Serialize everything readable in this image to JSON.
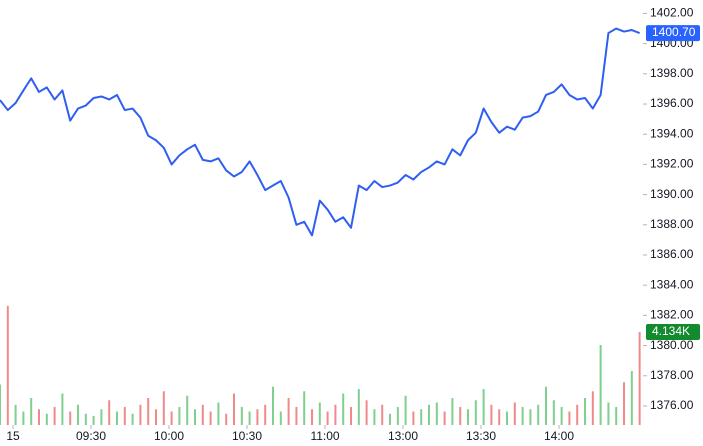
{
  "chart_data": {
    "type": "line",
    "series": [
      {
        "name": "Price",
        "color": "#2f5ff0",
        "values": [
          1396.26,
          1395.6,
          1396.07,
          1396.9,
          1397.7,
          1396.8,
          1397.1,
          1396.3,
          1396.9,
          1394.9,
          1395.7,
          1395.9,
          1396.4,
          1396.5,
          1396.3,
          1396.6,
          1395.6,
          1395.7,
          1395.1,
          1393.9,
          1393.6,
          1393.1,
          1392.0,
          1392.6,
          1393.0,
          1393.3,
          1392.3,
          1392.2,
          1392.4,
          1391.6,
          1391.2,
          1391.5,
          1392.2,
          1391.3,
          1390.3,
          1390.6,
          1390.9,
          1389.8,
          1388.0,
          1388.2,
          1387.3,
          1389.6,
          1389.0,
          1388.2,
          1388.5,
          1387.8,
          1390.6,
          1390.3,
          1390.9,
          1390.5,
          1390.6,
          1390.8,
          1391.3,
          1391.0,
          1391.5,
          1391.8,
          1392.2,
          1392.0,
          1393.0,
          1392.6,
          1393.6,
          1394.1,
          1395.7,
          1394.8,
          1394.1,
          1394.5,
          1394.3,
          1395.1,
          1395.2,
          1395.5,
          1396.6,
          1396.8,
          1397.3,
          1396.6,
          1396.3,
          1396.4,
          1395.7,
          1396.6,
          1400.7,
          1401.0,
          1400.8,
          1400.9,
          1400.7
        ]
      },
      {
        "name": "Volume",
        "axis": "y2",
        "type": "bar",
        "values": [
          1800,
          5300,
          900,
          600,
          1200,
          700,
          500,
          800,
          1400,
          600,
          900,
          500,
          400,
          700,
          1100,
          600,
          800,
          500,
          900,
          1200,
          700,
          1500,
          600,
          800,
          1300,
          700,
          900,
          600,
          1000,
          500,
          1400,
          800,
          600,
          700,
          900,
          1700,
          600,
          1200,
          800,
          1500,
          700,
          1000,
          600,
          900,
          1400,
          800,
          1600,
          1100,
          700,
          900,
          500,
          800,
          1300,
          600,
          700,
          900,
          1000,
          600,
          1200,
          800,
          700,
          1100,
          1600,
          900,
          700,
          600,
          1000,
          800,
          700,
          900,
          1700,
          1100,
          800,
          600,
          900,
          1200,
          1500,
          3560,
          1000,
          800,
          1900,
          2400,
          4134
        ]
      }
    ],
    "x": [
      0,
      3,
      6,
      9,
      12,
      15,
      18,
      21,
      24,
      27,
      30,
      33,
      36,
      39,
      42,
      45,
      48,
      51,
      54,
      57,
      60,
      63,
      66,
      69,
      72,
      75,
      78,
      81,
      84,
      87,
      90,
      93,
      96,
      99,
      102,
      105,
      108,
      111,
      114,
      117,
      120,
      123,
      126,
      129,
      132,
      135,
      138,
      141,
      144,
      147,
      150,
      153,
      156,
      159,
      162,
      165,
      168,
      171,
      174,
      177,
      180,
      183,
      186,
      189,
      192,
      195,
      198,
      201,
      204,
      207,
      210,
      213,
      216,
      219,
      222,
      225,
      228,
      231,
      234,
      237,
      240,
      243,
      246
    ],
    "xlim": [
      0,
      247.3
    ],
    "xticks": [
      {
        "value": 5,
        "label": "15"
      },
      {
        "value": 35,
        "label": "09:30"
      },
      {
        "value": 65,
        "label": "10:00"
      },
      {
        "value": 95,
        "label": "10:30"
      },
      {
        "value": 125,
        "label": "11:00"
      },
      {
        "value": 155,
        "label": "13:00"
      },
      {
        "value": 185,
        "label": "13:30"
      },
      {
        "value": 215,
        "label": "14:00"
      }
    ],
    "ylim": [
      1374.74,
      1402.89
    ],
    "yticks": [
      {
        "value": 1376,
        "label": "1376.00"
      },
      {
        "value": 1378,
        "label": "1378.00"
      },
      {
        "value": 1380,
        "label": "1380.00"
      },
      {
        "value": 1382,
        "label": "1382.00"
      },
      {
        "value": 1384,
        "label": "1384.00"
      },
      {
        "value": 1386,
        "label": "1386.00"
      },
      {
        "value": 1388,
        "label": "1388.00"
      },
      {
        "value": 1390,
        "label": "1390.00"
      },
      {
        "value": 1392,
        "label": "1392.00"
      },
      {
        "value": 1394,
        "label": "1394.00"
      },
      {
        "value": 1396,
        "label": "1396.00"
      },
      {
        "value": 1398,
        "label": "1398.00"
      },
      {
        "value": 1400,
        "label": "1400.00"
      },
      {
        "value": 1402,
        "label": "1402.00"
      }
    ],
    "y2lim": [
      0,
      18900
    ],
    "up_color": "#7fcf8e",
    "down_color": "#f08a8a",
    "last_price": {
      "value": 1400.7,
      "label": "1400.70",
      "color": "#2962ff"
    },
    "last_volume": {
      "value": 4134,
      "label": "4.134K",
      "color": "#138a2e"
    }
  }
}
